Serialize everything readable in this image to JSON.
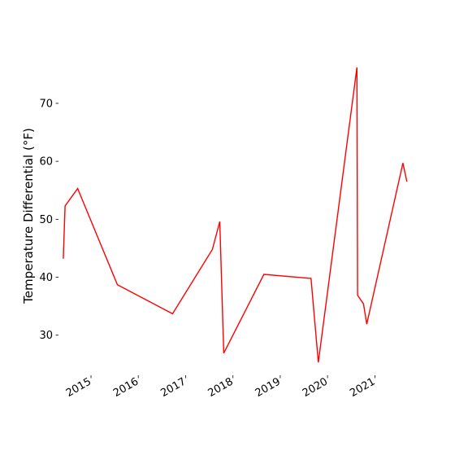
{
  "chart_data": {
    "type": "line",
    "title": "",
    "xlabel": "",
    "ylabel": "Temperature Differential (°F)",
    "grid": false,
    "legend": "none",
    "line_color": "#ff0000",
    "y_ticks": [
      30,
      40,
      50,
      60,
      70
    ],
    "x_ticks": [
      "2015",
      "2016",
      "2017",
      "2018",
      "2019",
      "2020",
      "2021"
    ],
    "x_tick_dates": [
      "2015-01-01",
      "2016-01-01",
      "2017-01-01",
      "2018-01-01",
      "2019-01-01",
      "2020-01-01",
      "2021-01-01"
    ],
    "ylim": [
      23.5,
      78.0
    ],
    "xlim": [
      "2014-04-25",
      "2021-09-25"
    ],
    "series": [
      {
        "x": [
          "2014-06-01",
          "2014-06-15",
          "2014-09-20",
          "2015-07-24",
          "2016-09-22",
          "2017-07-26",
          "2017-09-21",
          "2017-10-22",
          "2018-08-28",
          "2019-08-27",
          "2019-10-22",
          "2020-08-15",
          "2020-08-20",
          "2020-10-05",
          "2020-10-30",
          "2021-08-05",
          "2021-09-05"
        ],
        "y": [
          43.2,
          52.3,
          55.3,
          38.7,
          33.7,
          44.8,
          49.6,
          26.9,
          40.5,
          39.8,
          25.3,
          76.2,
          36.9,
          35.4,
          31.9,
          59.7,
          56.5
        ]
      }
    ]
  }
}
